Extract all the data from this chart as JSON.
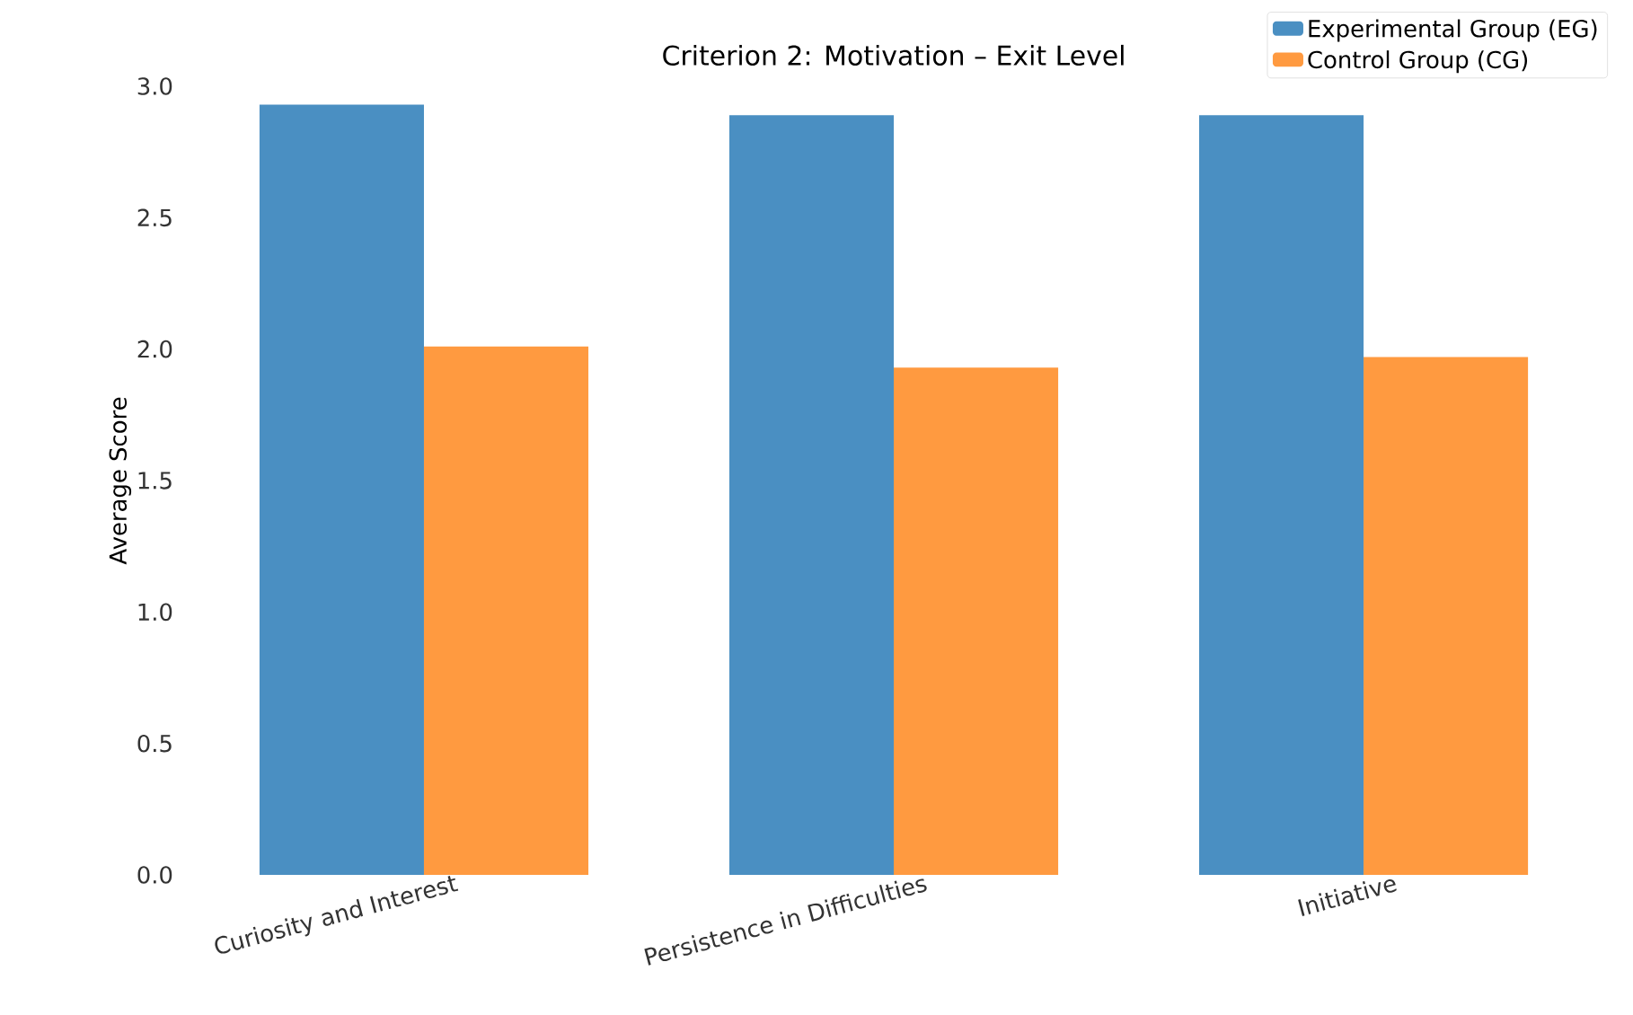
{
  "chart_data": {
    "type": "bar",
    "title": "Criterion 2: Motivation – Exit Level",
    "ylabel": "Average Score",
    "categories": [
      "Curiosity and Interest",
      "Persistence in Difficulties",
      "Initiative"
    ],
    "series": [
      {
        "name": "Experimental Group (EG)",
        "color": "#4a8fc2",
        "values": [
          2.93,
          2.89,
          2.89
        ]
      },
      {
        "name": "Control Group (CG)",
        "color": "#ff9a40",
        "values": [
          2.01,
          1.93,
          1.97
        ]
      }
    ],
    "ylim": [
      0,
      3.0
    ],
    "yticks": [
      {
        "value": 0,
        "label": "0.0"
      },
      0.5,
      {
        "value": 1,
        "label": "1.0"
      },
      1.5,
      {
        "value": 2,
        "label": "2.0"
      },
      2.5,
      {
        "value": 3,
        "label": "3.0"
      }
    ],
    "grid": false,
    "legend": "top right"
  }
}
